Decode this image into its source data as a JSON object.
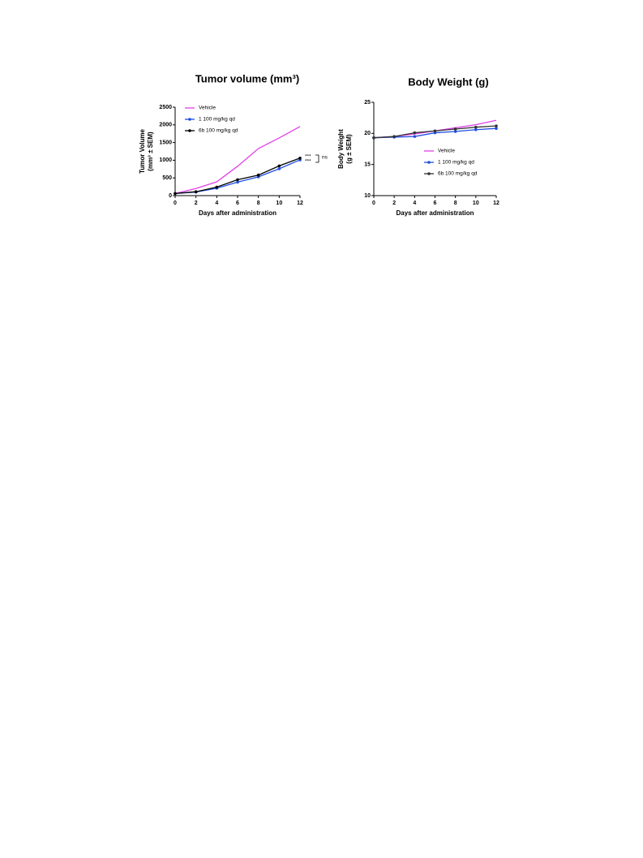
{
  "chart_data": [
    {
      "type": "line",
      "title": "Tumor volume (mm³)",
      "ylabel": [
        "Tumor Volume",
        "(mm³ ± SEM)"
      ],
      "xlabel": "Days after administration",
      "x": [
        0,
        2,
        4,
        6,
        8,
        10,
        12
      ],
      "xlim": [
        0,
        12
      ],
      "xticks": [
        0,
        2,
        4,
        6,
        8,
        10,
        12
      ],
      "ylim": [
        0,
        2500
      ],
      "yticks": [
        0,
        500,
        1000,
        1500,
        2000,
        2500
      ],
      "legend": "upper left",
      "series": [
        {
          "name": "Vehicle",
          "color": "#e040e8",
          "values": [
            60,
            200,
            390,
            830,
            1330,
            1630,
            1950
          ]
        },
        {
          "name": "1 100 mg/kg qd",
          "color": "#1f4fe0",
          "marker": "circle",
          "values": [
            60,
            100,
            210,
            380,
            530,
            760,
            1010
          ]
        },
        {
          "name": "6b 100 mg/kg qd",
          "color": "#000000",
          "marker": "circle",
          "values": [
            60,
            110,
            240,
            450,
            580,
            840,
            1060
          ]
        }
      ],
      "annotations": [
        "***",
        "***",
        "ns"
      ]
    },
    {
      "type": "line",
      "title": "Body Weight (g)",
      "ylabel": [
        "Body Weight",
        "(g ± SEM)"
      ],
      "xlabel": "Days after administration",
      "x": [
        0,
        2,
        4,
        6,
        8,
        10,
        12
      ],
      "xlim": [
        0,
        12
      ],
      "xticks": [
        0,
        2,
        4,
        6,
        8,
        10,
        12
      ],
      "ylim": [
        10,
        25
      ],
      "yticks": [
        10,
        15,
        20,
        25
      ],
      "legend": "lower right",
      "series": [
        {
          "name": "Vehicle",
          "color": "#e040e8",
          "values": [
            19.3,
            19.5,
            19.9,
            20.4,
            20.9,
            21.4,
            22.1
          ]
        },
        {
          "name": "1 100 mg/kg qd",
          "color": "#1f4fe0",
          "marker": "circle",
          "values": [
            19.3,
            19.4,
            19.5,
            20.1,
            20.3,
            20.6,
            20.8
          ]
        },
        {
          "name": "6b 100 mg/kg qd",
          "color": "#333333",
          "marker": "circle",
          "values": [
            19.3,
            19.5,
            20.1,
            20.4,
            20.7,
            21.0,
            21.2
          ]
        }
      ]
    }
  ]
}
